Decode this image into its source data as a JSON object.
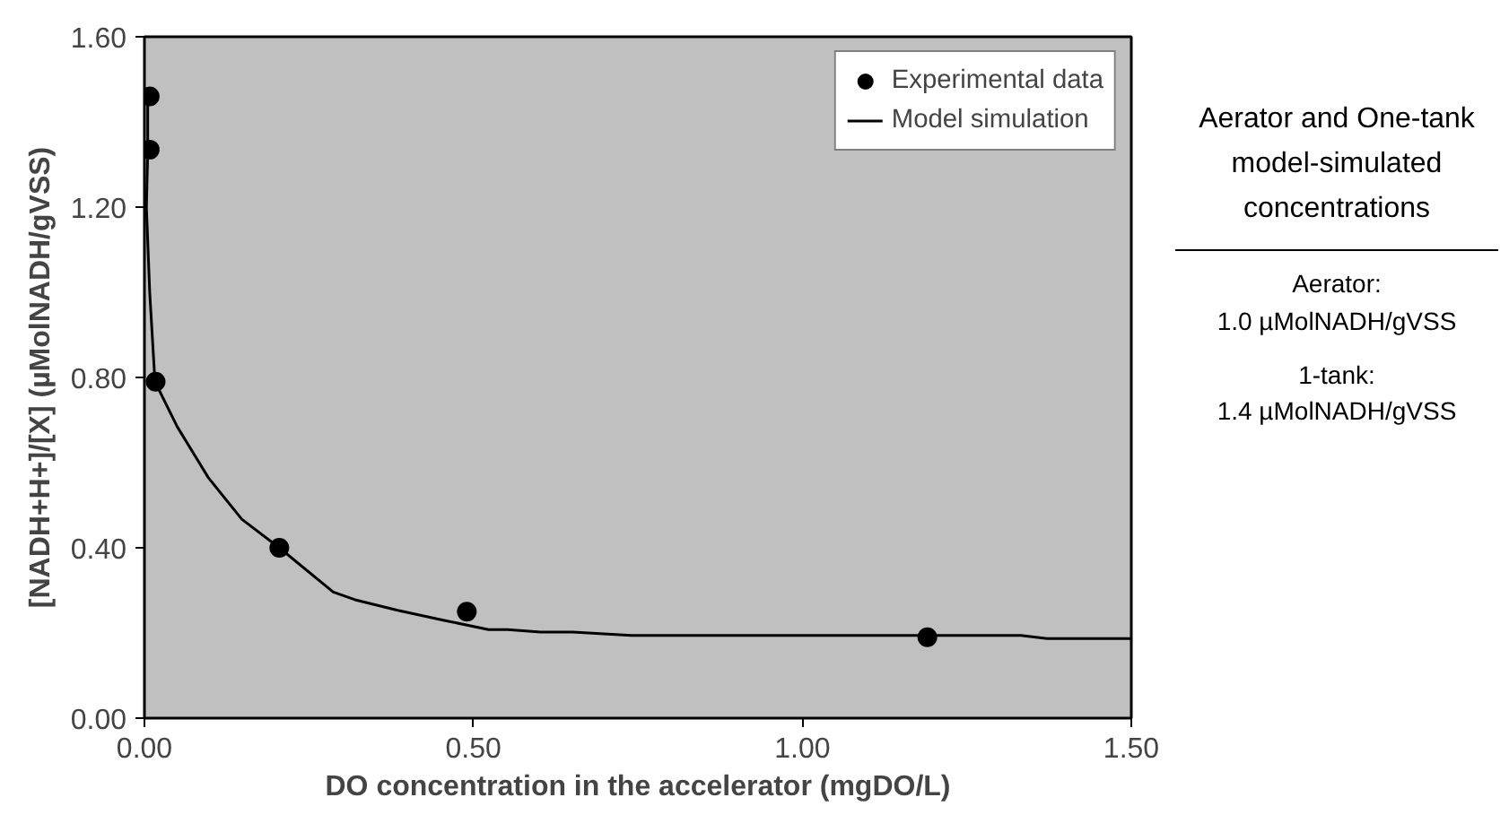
{
  "chart_data": {
    "type": "scatter",
    "xlabel": "DO concentration in the accelerator (mgDO/L)",
    "ylabel": "[NADH+H+]/[X] (µMolNADH/gVSS)",
    "xlim": [
      0,
      1.5
    ],
    "xticks": [
      {
        "value": 0,
        "label": "0.00"
      },
      {
        "value": 0.5,
        "label": "0.50"
      },
      {
        "value": 1,
        "label": "1.00"
      },
      {
        "value": 1.5,
        "label": "1.50"
      }
    ],
    "ylim": [
      0,
      1.6
    ],
    "yticks": [
      {
        "value": 0,
        "label": "0.00"
      },
      {
        "value": 0.4,
        "label": "0.40"
      },
      {
        "value": 0.8,
        "label": "0.80"
      },
      {
        "value": 1.2,
        "label": "1.20"
      },
      {
        "value": 1.6,
        "label": "1.60"
      }
    ],
    "grid": false,
    "legend": "top right",
    "line_style": "solid",
    "series": [
      {
        "name": "Experimental data",
        "marker": "circle",
        "color": "#000000",
        "x": [
          0.008,
          0.008,
          0.017,
          0.205,
          0.49,
          1.19
        ],
        "values": [
          1.46,
          1.335,
          0.79,
          0.4,
          0.25,
          0.19
        ]
      },
      {
        "name": "Model simulation",
        "type": "line",
        "color": "#000000",
        "x": [
          0.005,
          0.005,
          0.003,
          0.008,
          0.016,
          0.05,
          0.097,
          0.148,
          0.205,
          0.287,
          0.32,
          0.385,
          0.454,
          0.523,
          0.552,
          0.602,
          0.651,
          0.74,
          1.332,
          1.372,
          1.5
        ],
        "values": [
          1.46,
          1.33,
          1.2,
          1.0,
          0.79,
          0.684,
          0.565,
          0.467,
          0.4,
          0.296,
          0.278,
          0.253,
          0.23,
          0.208,
          0.208,
          0.202,
          0.202,
          0.194,
          0.194,
          0.187,
          0.187
        ]
      }
    ],
    "annotations": [
      "Aerator and One-tank model-simulated concentrations",
      "Aerator:\n1.0 µMolNADH/gVSS",
      "1-tank:\n1.4 µMolNADH/gVSS"
    ]
  }
}
